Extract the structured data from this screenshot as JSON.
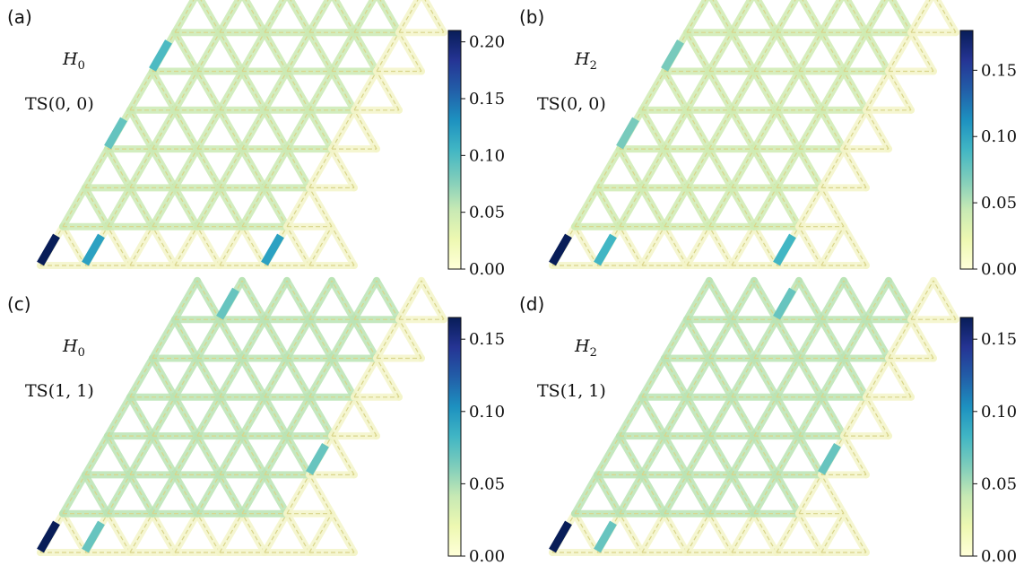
{
  "figure": {
    "colormap": [
      "#ffffd9",
      "#edf8b1",
      "#c7e9b4",
      "#7fcdbb",
      "#41b6c4",
      "#1d91c0",
      "#225ea8",
      "#253494",
      "#081d58"
    ],
    "lattice_color": "#d9d48a",
    "panels": [
      {
        "label": "(a)",
        "hamiltonian_symbol": "H",
        "hamiltonian_sub": "0",
        "state_label": "TS(0, 0)",
        "colorbar": {
          "vmin": 0,
          "vmax": 0.21,
          "ticks": [
            "0.00",
            "0.05",
            "0.10",
            "0.15",
            "0.20"
          ],
          "tick_values": [
            0,
            0.05,
            0.1,
            0.15,
            0.2
          ]
        },
        "highlight_level": 0.05,
        "strong_bonds": [
          {
            "row": 0,
            "col": 0,
            "dir": "right-up",
            "value": 0.21
          },
          {
            "row": 0,
            "col": 1,
            "dir": "right-up",
            "value": 0.12
          },
          {
            "row": 0,
            "col": 5,
            "dir": "right-up",
            "value": 0.12
          },
          {
            "row": 3,
            "col": 0,
            "dir": "right-up",
            "value": 0.09
          },
          {
            "row": 5,
            "col": 0,
            "dir": "right-up",
            "value": 0.1
          }
        ]
      },
      {
        "label": "(b)",
        "hamiltonian_symbol": "H",
        "hamiltonian_sub": "2",
        "state_label": "TS(0, 0)",
        "colorbar": {
          "vmin": 0,
          "vmax": 0.18,
          "ticks": [
            "0.00",
            "0.05",
            "0.10",
            "0.15"
          ],
          "tick_values": [
            0,
            0.05,
            0.1,
            0.15
          ]
        },
        "highlight_level": 0.04,
        "strong_bonds": [
          {
            "row": 0,
            "col": 0,
            "dir": "right-up",
            "value": 0.18
          },
          {
            "row": 0,
            "col": 1,
            "dir": "right-up",
            "value": 0.09
          },
          {
            "row": 0,
            "col": 5,
            "dir": "right-up",
            "value": 0.09
          },
          {
            "row": 3,
            "col": 0,
            "dir": "right-up",
            "value": 0.07
          },
          {
            "row": 5,
            "col": 0,
            "dir": "right-up",
            "value": 0.07
          }
        ]
      },
      {
        "label": "(c)",
        "hamiltonian_symbol": "H",
        "hamiltonian_sub": "0",
        "state_label": "TS(1, 1)",
        "colorbar": {
          "vmin": 0,
          "vmax": 0.165,
          "ticks": [
            "0.00",
            "0.05",
            "0.10",
            "0.15"
          ],
          "tick_values": [
            0,
            0.05,
            0.1,
            0.15
          ]
        },
        "highlight_level": 0.045,
        "strong_bonds": [
          {
            "row": 0,
            "col": 0,
            "dir": "right-up",
            "value": 0.165
          },
          {
            "row": 0,
            "col": 1,
            "dir": "right-up",
            "value": 0.07
          },
          {
            "row": 2,
            "col": 5,
            "dir": "right-up",
            "value": 0.07
          },
          {
            "row": 6,
            "col": 1,
            "dir": "right-up",
            "value": 0.07
          }
        ]
      },
      {
        "label": "(d)",
        "hamiltonian_symbol": "H",
        "hamiltonian_sub": "2",
        "state_label": "TS(1, 1)",
        "colorbar": {
          "vmin": 0,
          "vmax": 0.165,
          "ticks": [
            "0.00",
            "0.05",
            "0.10",
            "0.15"
          ],
          "tick_values": [
            0,
            0.05,
            0.1,
            0.15
          ]
        },
        "highlight_level": 0.045,
        "strong_bonds": [
          {
            "row": 0,
            "col": 0,
            "dir": "right-up",
            "value": 0.165
          },
          {
            "row": 0,
            "col": 1,
            "dir": "right-up",
            "value": 0.07
          },
          {
            "row": 2,
            "col": 5,
            "dir": "right-up",
            "value": 0.07
          },
          {
            "row": 6,
            "col": 2,
            "dir": "right-up",
            "value": 0.07
          }
        ]
      }
    ]
  }
}
